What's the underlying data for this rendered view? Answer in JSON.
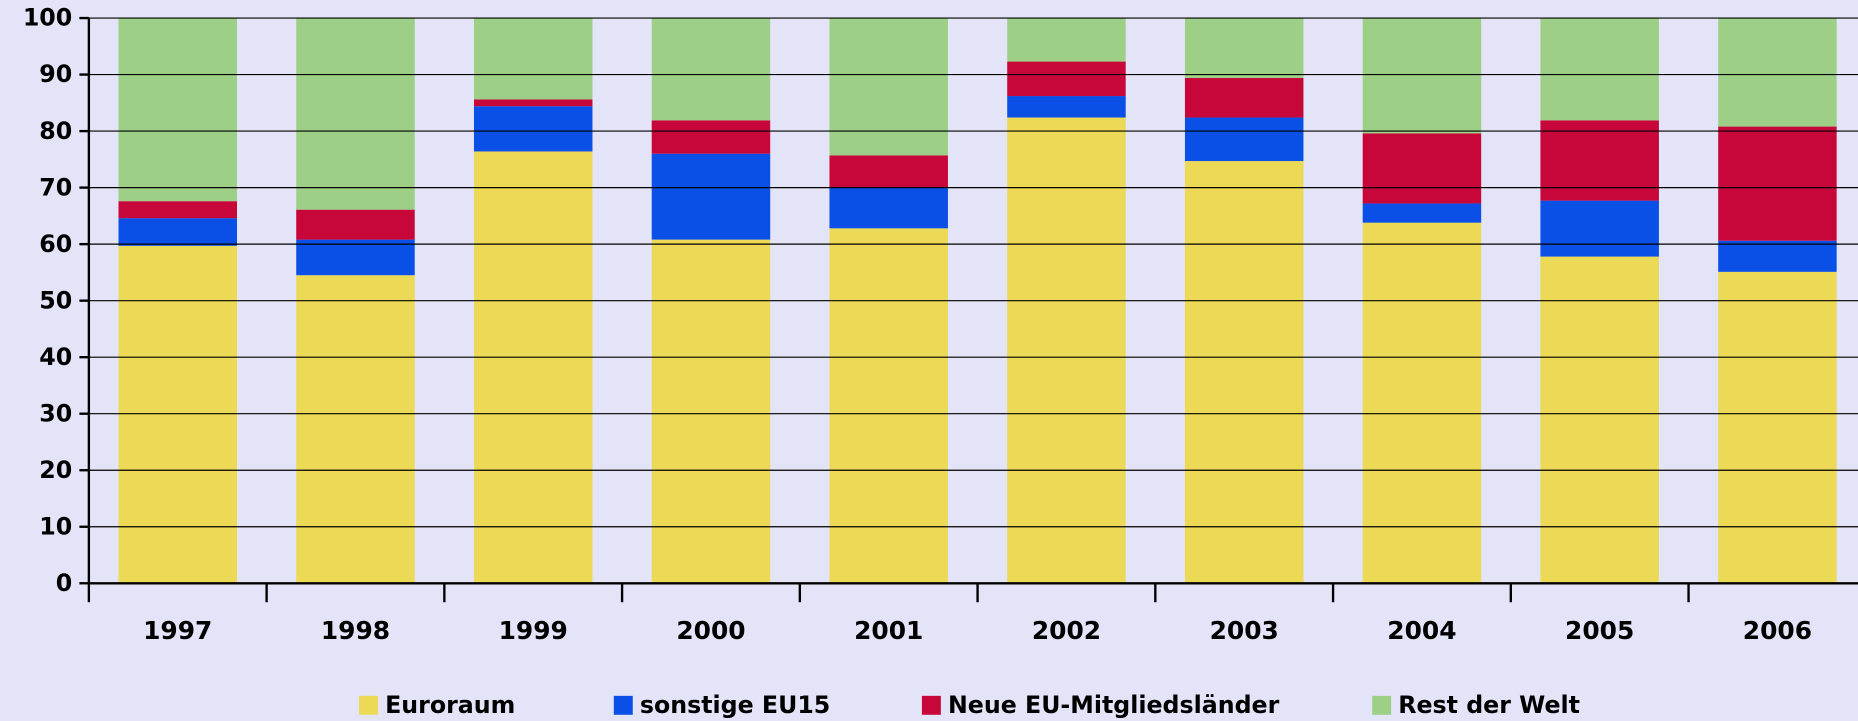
{
  "chart_data": {
    "type": "stacked_bar",
    "categories": [
      "1997",
      "1998",
      "1999",
      "2000",
      "2001",
      "2002",
      "2003",
      "2004",
      "2005",
      "2006"
    ],
    "series": [
      {
        "name": "Euroraum",
        "color": "#ecd955",
        "values": [
          59.7,
          54.5,
          76.4,
          60.8,
          62.8,
          82.4,
          74.7,
          63.8,
          57.8,
          55.1
        ]
      },
      {
        "name": "sonstige EU15",
        "color": "#0b50e6",
        "values": [
          4.9,
          6.3,
          8.0,
          15.2,
          7.2,
          3.8,
          7.7,
          3.4,
          9.9,
          5.5
        ]
      },
      {
        "name": "Neue EU-Mitgliedsländer",
        "color": "#c7073a",
        "values": [
          3.0,
          5.3,
          1.2,
          5.9,
          5.7,
          6.1,
          7.0,
          12.4,
          14.2,
          20.2
        ]
      },
      {
        "name": "Rest der Welt",
        "color": "#9dcf86",
        "values": [
          32.4,
          33.9,
          14.4,
          18.1,
          24.3,
          7.7,
          10.6,
          20.4,
          18.1,
          19.2
        ]
      }
    ],
    "ylim": [
      0,
      100
    ],
    "yticks": [
      0,
      10,
      20,
      30,
      40,
      50,
      60,
      70,
      80,
      90,
      100
    ],
    "grid": true,
    "legend": "bottom"
  }
}
